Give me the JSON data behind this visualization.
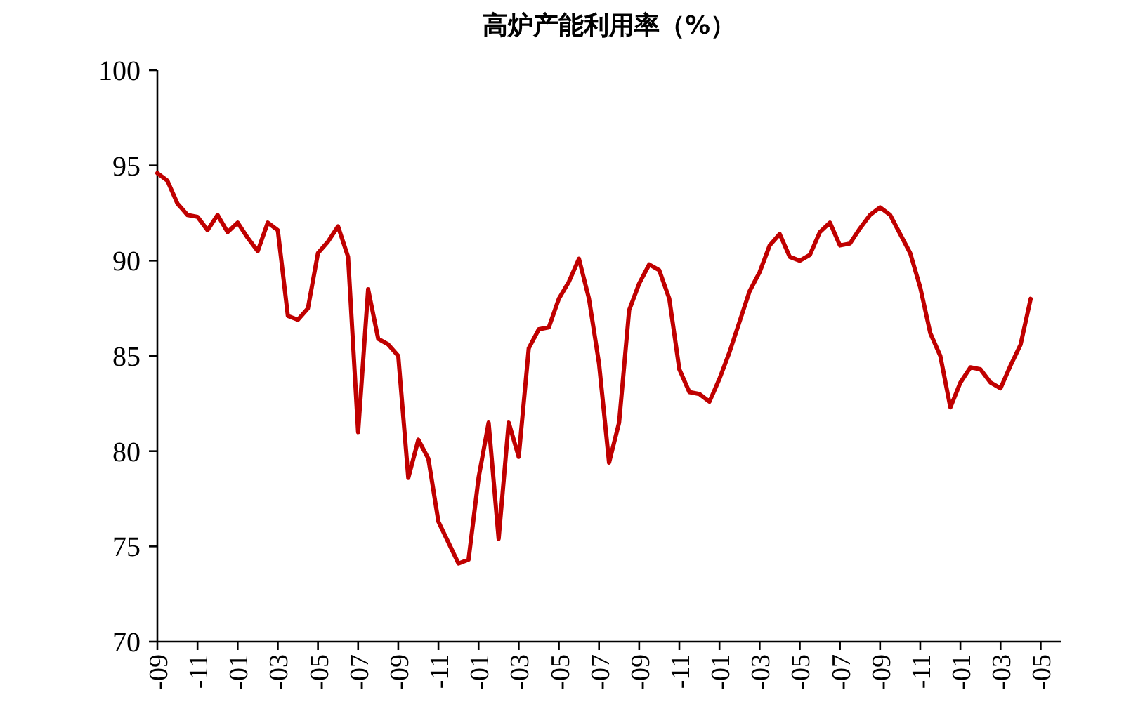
{
  "chart_data": {
    "type": "line",
    "title": "高炉产能利用率（%）",
    "categories": [
      "-09",
      null,
      null,
      null,
      "-11",
      null,
      null,
      null,
      "-01",
      null,
      null,
      null,
      "-03",
      null,
      null,
      null,
      "-05",
      null,
      null,
      null,
      "-07",
      null,
      null,
      null,
      "-09",
      null,
      null,
      null,
      "-11",
      null,
      null,
      null,
      "-01",
      null,
      null,
      null,
      "-03",
      null,
      null,
      null,
      "-05",
      null,
      null,
      null,
      "-07",
      null,
      null,
      null,
      "-09",
      null,
      null,
      null,
      "-11",
      null,
      null,
      null,
      "-01",
      null,
      null,
      null,
      "-03",
      null,
      null,
      null,
      "-05",
      null,
      null,
      null,
      "-07",
      null,
      null,
      null,
      "-09",
      null,
      null,
      null,
      "-11",
      null,
      null,
      null,
      "-01",
      null,
      null,
      null,
      "-03",
      null,
      null,
      null,
      "-05"
    ],
    "values": [
      94.6,
      94.2,
      93.0,
      92.4,
      92.3,
      91.6,
      92.4,
      91.5,
      92.0,
      91.2,
      90.5,
      92.0,
      91.6,
      87.1,
      86.9,
      87.5,
      90.4,
      91.0,
      91.8,
      90.2,
      81.0,
      88.5,
      85.9,
      85.6,
      85.0,
      78.6,
      80.6,
      79.6,
      76.3,
      75.2,
      74.1,
      74.3,
      78.6,
      81.5,
      75.4,
      81.5,
      79.7,
      85.4,
      86.4,
      86.5,
      88.0,
      88.9,
      90.1,
      88.0,
      84.6,
      79.4,
      81.5,
      87.4,
      88.8,
      89.8,
      89.5,
      88.0,
      84.3,
      83.1,
      83.0,
      82.6,
      83.8,
      85.2,
      86.8,
      88.4,
      89.4,
      90.8,
      91.4,
      90.2,
      90.0,
      90.3,
      91.5,
      92.0,
      90.8,
      90.9,
      91.7,
      92.4,
      92.8,
      92.4,
      91.4,
      90.4,
      88.6,
      86.2,
      85.0,
      82.3,
      83.6,
      84.4,
      84.3,
      83.6,
      83.3,
      84.5,
      85.6,
      88.0,
      null
    ],
    "color": "#c00000",
    "ylim": [
      70,
      100
    ],
    "yticks": [
      70,
      75,
      80,
      85,
      90,
      95,
      100
    ]
  }
}
